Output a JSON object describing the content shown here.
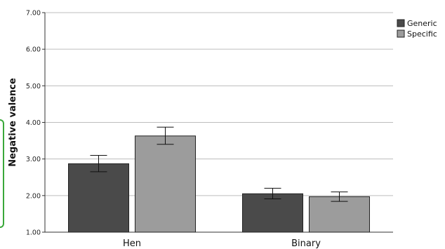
{
  "chart_data": {
    "type": "bar",
    "title": "",
    "xlabel": "",
    "ylabel": "Negative valence",
    "categories": [
      "Hen",
      "Binary"
    ],
    "series": [
      {
        "name": "Generic",
        "values": [
          2.87,
          2.05
        ],
        "err_low": [
          2.65,
          1.91
        ],
        "err_high": [
          3.1,
          2.2
        ],
        "color": "#4a4a4a"
      },
      {
        "name": "Specific",
        "values": [
          3.63,
          1.97
        ],
        "err_low": [
          3.4,
          1.84
        ],
        "err_high": [
          3.87,
          2.1
        ],
        "color": "#9c9c9c"
      }
    ],
    "ylim": [
      1.0,
      7.0
    ],
    "yticks": [
      "1.00",
      "2.00",
      "3.00",
      "4.00",
      "5.00",
      "6.00",
      "7.00"
    ],
    "grid": true,
    "legend_position": "top-right"
  }
}
